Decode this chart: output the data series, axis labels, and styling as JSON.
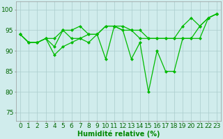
{
  "series": [
    [
      94,
      92,
      92,
      93,
      89,
      91,
      92,
      93,
      92,
      94,
      88,
      96,
      95,
      88,
      92,
      80,
      90,
      85,
      85,
      93,
      93,
      96,
      98,
      99
    ],
    [
      94,
      92,
      92,
      93,
      93,
      95,
      93,
      93,
      94,
      94,
      96,
      96,
      95,
      95,
      93,
      93,
      93,
      93,
      93,
      93,
      93,
      93,
      98,
      99
    ],
    [
      94,
      92,
      92,
      93,
      91,
      95,
      95,
      96,
      94,
      94,
      96,
      96,
      96,
      95,
      95,
      93,
      93,
      93,
      93,
      96,
      98,
      96,
      98,
      99
    ]
  ],
  "line_color": "#00bb00",
  "marker": "D",
  "marker_size": 2.0,
  "linewidth": 0.9,
  "xlabel": "Humidité relative (%)",
  "xlabel_fontsize": 7,
  "xlabel_color": "#008800",
  "yticks": [
    75,
    80,
    85,
    90,
    95,
    100
  ],
  "xlim": [
    -0.5,
    23.5
  ],
  "ylim": [
    73,
    102
  ],
  "bg_color": "#d0ecec",
  "grid_color": "#aacccc",
  "tick_label_color": "#006600",
  "tick_fontsize": 6.5
}
